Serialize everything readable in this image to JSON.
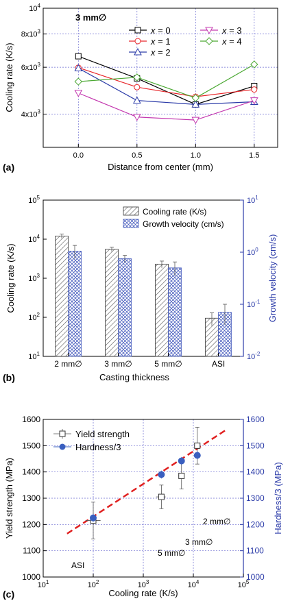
{
  "chart_data": [
    {
      "panel_label": "(a)",
      "type": "line",
      "annotation": "3 mm∅",
      "xlabel": "Distance from center (mm)",
      "ylabel": "Cooling rate (K/s)",
      "x": [
        0.0,
        0.5,
        1.0,
        1.5
      ],
      "xlim": [
        -0.3,
        1.7
      ],
      "ylim": [
        3000,
        10000
      ],
      "yscale": "log",
      "xticks": [
        "0.0",
        "0.5",
        "1.0",
        "1.5"
      ],
      "yticks": [
        {
          "value": 4000,
          "mant": "4x10",
          "exp": "3"
        },
        {
          "value": 6000,
          "mant": "6x10",
          "exp": "3"
        },
        {
          "value": 8000,
          "mant": "8x10",
          "exp": "3"
        },
        {
          "value": 10000,
          "mant": "10",
          "exp": "4"
        }
      ],
      "grid": true,
      "legend_position": "top-right",
      "series": [
        {
          "var": "x",
          "eq": " = 0",
          "color": "#000000",
          "marker": "square",
          "values": [
            6600,
            5450,
            4350,
            5100
          ]
        },
        {
          "var": "x",
          "eq": " = 1",
          "color": "#e8262a",
          "marker": "circle",
          "values": [
            5980,
            5050,
            4650,
            4950
          ]
        },
        {
          "var": "x",
          "eq": " = 2",
          "color": "#2a3aa8",
          "marker": "triangle-up",
          "values": [
            5950,
            4500,
            4350,
            4450
          ]
        },
        {
          "var": "x",
          "eq": " = 3",
          "color": "#c43ab0",
          "marker": "triangle-down",
          "values": [
            4800,
            3900,
            3800,
            4500
          ]
        },
        {
          "var": "x",
          "eq": " = 4",
          "color": "#4aa832",
          "marker": "diamond",
          "values": [
            5300,
            5500,
            4600,
            6150
          ]
        }
      ]
    },
    {
      "panel_label": "(b)",
      "type": "bar",
      "xlabel": "Casting thickness",
      "ylabel": "Cooling rate (K/s)",
      "ylabel_right": "Growth velocity (cm/s)",
      "categories": [
        "2 mm∅",
        "3 mm∅",
        "5 mm∅",
        "ASI"
      ],
      "ylim": [
        10,
        100000
      ],
      "ylim_right": [
        0.01,
        10
      ],
      "yscale": "log",
      "grid": false,
      "legend_position": "top-right",
      "left_ticks": [
        {
          "value": 10,
          "mant": "10",
          "exp": "1"
        },
        {
          "value": 100,
          "mant": "10",
          "exp": "2"
        },
        {
          "value": 1000,
          "mant": "10",
          "exp": "3"
        },
        {
          "value": 10000,
          "mant": "10",
          "exp": "4"
        },
        {
          "value": 100000,
          "mant": "10",
          "exp": "5"
        }
      ],
      "right_ticks": [
        {
          "value": 0.01,
          "mant": "10",
          "exp": "-2"
        },
        {
          "value": 0.1,
          "mant": "10",
          "exp": "-1"
        },
        {
          "value": 1,
          "mant": "10",
          "exp": "0"
        },
        {
          "value": 10,
          "mant": "10",
          "exp": "1"
        }
      ],
      "series": [
        {
          "name": "Cooling rate (K/s)",
          "axis": "left",
          "pattern": "hatch",
          "values": [
            12000,
            5500,
            2300,
            95
          ],
          "errors": [
            1500,
            700,
            450,
            35
          ]
        },
        {
          "name": "Growth velocity (cm/s)",
          "axis": "right",
          "pattern": "crosshatch",
          "values": [
            1.05,
            0.75,
            0.5,
            0.07
          ],
          "errors": [
            0.3,
            0.12,
            0.15,
            0.03
          ]
        }
      ]
    },
    {
      "panel_label": "(c)",
      "type": "scatter",
      "xlabel": "Cooling rate (K/s)",
      "ylabel": "Yield strength (MPa)",
      "ylabel_right": "Hardness/3 (MPa)",
      "xscale": "log",
      "xlim": [
        10,
        100000
      ],
      "ylim": [
        1000,
        1600
      ],
      "grid": true,
      "legend_position": "top-left",
      "xticks": [
        {
          "value": 10,
          "mant": "10",
          "exp": "1"
        },
        {
          "value": 100,
          "mant": "10",
          "exp": "2"
        },
        {
          "value": 1000,
          "mant": "10",
          "exp": "3"
        },
        {
          "value": 10000,
          "mant": "10",
          "exp": "4"
        },
        {
          "value": 100000,
          "mant": "10",
          "exp": "5"
        }
      ],
      "yticks": [
        1000,
        1100,
        1200,
        1300,
        1400,
        1500,
        1600
      ],
      "series": [
        {
          "name": "Yield strength",
          "marker": "open-square",
          "color": "#333333",
          "points": [
            {
              "x": 100,
              "y": 1215,
              "yerr": 70,
              "xerr": [
                30,
                40
              ]
            },
            {
              "x": 2300,
              "y": 1305,
              "yerr": 45,
              "xerr": [
                500,
                500
              ]
            },
            {
              "x": 5800,
              "y": 1385,
              "yerr": 50,
              "xerr": [
                800,
                800
              ]
            },
            {
              "x": 12000,
              "y": 1500,
              "yerr": 70,
              "xerr": [
                1500,
                1500
              ]
            }
          ]
        },
        {
          "name": "Hardness/3",
          "marker": "filled-circle",
          "color": "#3a5fbf",
          "points": [
            {
              "x": 100,
              "y": 1225,
              "yerr": 15
            },
            {
              "x": 2300,
              "y": 1390,
              "yerr": 15
            },
            {
              "x": 5800,
              "y": 1442,
              "yerr": 15
            },
            {
              "x": 12000,
              "y": 1463,
              "yerr": 15
            }
          ]
        }
      ],
      "fit_line": {
        "color": "#e02020",
        "style": "dashed",
        "x": [
          30,
          45000
        ],
        "y": [
          1165,
          1560
        ]
      },
      "annotations": [
        "2 mm∅",
        "3 mm∅",
        "5 mm∅",
        "ASI"
      ]
    }
  ]
}
